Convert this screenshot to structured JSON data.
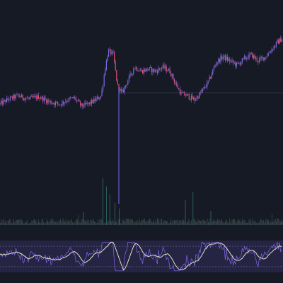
{
  "colors": {
    "background": "#161a25",
    "candle_up": "#6f6fe8",
    "candle_down": "#e0506e",
    "wick": "#9b6ad6",
    "volume_bar": "#3a4a4a",
    "volume_spike": "#2f6f66",
    "price_line": "#2b3244",
    "indicator_band": "#262443",
    "indicator_fast": "#7e68e8",
    "indicator_slow": "#e4e0c8",
    "indicator_guide": "#5c5a86"
  },
  "chart_data": {
    "type": "line",
    "title": "",
    "xlabel": "",
    "ylabel": "",
    "grid": false,
    "panels": [
      "price-candles",
      "volume",
      "oscillator"
    ],
    "price_range": [
      0,
      100
    ],
    "price_anchors": [
      [
        0,
        40
      ],
      [
        10,
        44
      ],
      [
        25,
        48
      ],
      [
        40,
        45
      ],
      [
        55,
        47
      ],
      [
        70,
        42
      ],
      [
        85,
        40
      ],
      [
        95,
        44
      ],
      [
        105,
        46
      ],
      [
        115,
        38
      ],
      [
        125,
        40
      ],
      [
        135,
        44
      ],
      [
        143,
        48
      ],
      [
        148,
        72
      ],
      [
        153,
        92
      ],
      [
        160,
        88
      ],
      [
        166,
        58
      ],
      [
        172,
        50
      ],
      [
        180,
        62
      ],
      [
        190,
        76
      ],
      [
        200,
        72
      ],
      [
        210,
        74
      ],
      [
        220,
        72
      ],
      [
        230,
        76
      ],
      [
        240,
        72
      ],
      [
        248,
        60
      ],
      [
        256,
        50
      ],
      [
        265,
        48
      ],
      [
        275,
        44
      ],
      [
        285,
        52
      ],
      [
        295,
        62
      ],
      [
        305,
        80
      ],
      [
        315,
        86
      ],
      [
        325,
        82
      ],
      [
        335,
        78
      ],
      [
        345,
        84
      ],
      [
        355,
        88
      ],
      [
        365,
        82
      ],
      [
        375,
        86
      ],
      [
        385,
        94
      ],
      [
        392,
        100
      ],
      [
        399,
        104
      ]
    ],
    "price_line_level": 51,
    "spike": {
      "x": 168,
      "low": 14
    },
    "volume_range": [
      0,
      100
    ],
    "volume_spikes": [
      [
        0,
        4
      ],
      [
        30,
        10
      ],
      [
        110,
        18
      ],
      [
        118,
        24
      ],
      [
        145,
        85
      ],
      [
        150,
        70
      ],
      [
        155,
        55
      ],
      [
        162,
        40
      ],
      [
        168,
        30
      ],
      [
        255,
        55
      ],
      [
        262,
        45
      ],
      [
        272,
        60
      ],
      [
        298,
        25
      ],
      [
        384,
        20
      ]
    ],
    "oscillator_range": [
      0,
      100
    ],
    "oscillator_guide_level": 82
  }
}
